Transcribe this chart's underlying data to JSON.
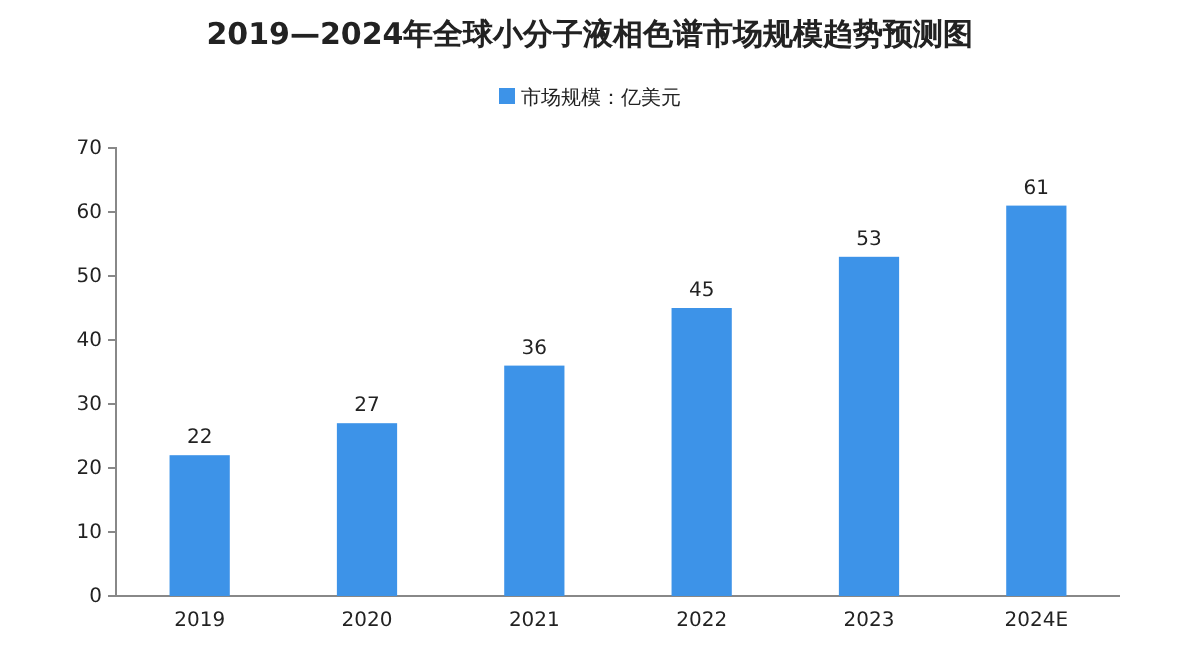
{
  "chart_data": {
    "type": "bar",
    "title": "2019—2024年全球小分子液相色谱市场规模趋势预测图",
    "categories": [
      "2019",
      "2020",
      "2021",
      "2022",
      "2023",
      "2024E"
    ],
    "series": [
      {
        "name": "市场规模：亿美元",
        "color": "#3d93e8",
        "values": [
          22,
          27,
          36,
          45,
          53,
          61
        ]
      }
    ],
    "ylim": [
      0,
      70
    ],
    "yticks": [
      0,
      10,
      20,
      30,
      40,
      50,
      60,
      70
    ],
    "data_labels": true,
    "legend": "top",
    "grid": false
  }
}
